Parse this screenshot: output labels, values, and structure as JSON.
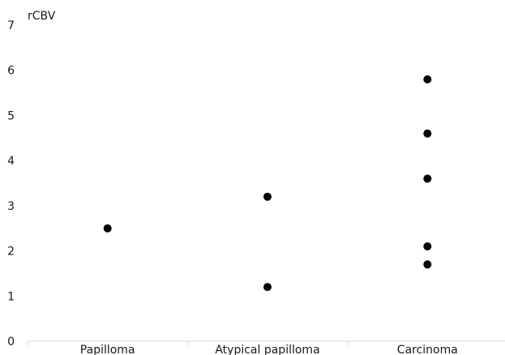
{
  "chart_data": {
    "type": "scatter",
    "title": "",
    "xlabel": "",
    "ylabel": "rCBV",
    "categories": [
      "Papilloma",
      "Atypical papilloma",
      "Carcinoma"
    ],
    "ylim": [
      0,
      7
    ],
    "yticks": [
      "0",
      "1",
      "2",
      "3",
      "4",
      "5",
      "6",
      "7"
    ],
    "grid": false,
    "legend": "none",
    "marker_color": "#000000",
    "axis_color": "#d9d9d9",
    "points": [
      {
        "category": "Papilloma",
        "y": 2.5
      },
      {
        "category": "Atypical papilloma",
        "y": 3.2
      },
      {
        "category": "Atypical papilloma",
        "y": 1.2
      },
      {
        "category": "Carcinoma",
        "y": 5.8
      },
      {
        "category": "Carcinoma",
        "y": 4.6
      },
      {
        "category": "Carcinoma",
        "y": 3.6
      },
      {
        "category": "Carcinoma",
        "y": 2.1
      },
      {
        "category": "Carcinoma",
        "y": 1.7
      }
    ]
  }
}
